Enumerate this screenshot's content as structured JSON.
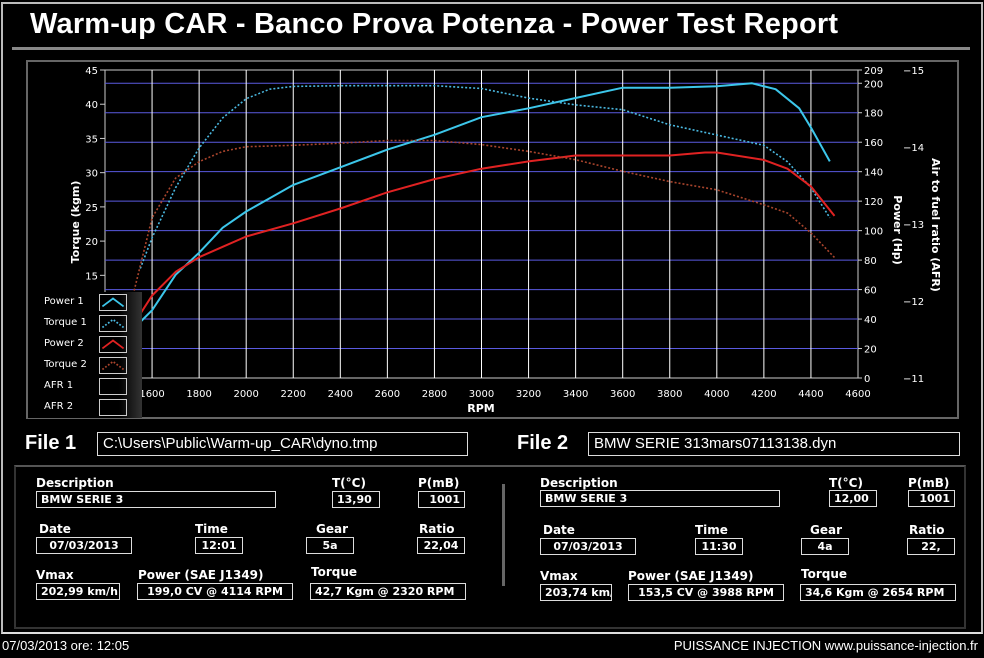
{
  "title": "Warm-up CAR  - Banco Prova Potenza -  Power Test Report",
  "colors": {
    "power1": "#3cc6ea",
    "torque1": "#4ab8e0",
    "power2": "#e02222",
    "torque2": "#a8442c",
    "grid_h": "#5a5ae0",
    "grid_v": "#ffffff"
  },
  "legend": [
    {
      "label": "Power 1",
      "icon": "solid-line"
    },
    {
      "label": "Torque 1",
      "icon": "dotted-line"
    },
    {
      "label": "Power 2",
      "icon": "solid-line"
    },
    {
      "label": "Torque 2",
      "icon": "dotted-line"
    },
    {
      "label": "AFR 1",
      "icon": "empty"
    },
    {
      "label": "AFR 2",
      "icon": "empty"
    }
  ],
  "chart_data": {
    "type": "line",
    "xlabel": "RPM",
    "ylabel_left": "Torque (kgm)",
    "ylabel_right": "Power (Hp)",
    "ylabel_right2": "Air to fuel ratio (AFR)",
    "xlim": [
      1400,
      4600
    ],
    "ylim_left": [
      0,
      45
    ],
    "ylim_right": [
      0,
      209
    ],
    "ylim_right2": [
      11,
      15
    ],
    "x_ticks": [
      1600,
      1800,
      2000,
      2200,
      2400,
      2600,
      2800,
      3000,
      3200,
      3400,
      3600,
      3800,
      4000,
      4200,
      4400,
      4600
    ],
    "y_left_ticks": [
      15,
      20,
      25,
      30,
      35,
      40,
      45
    ],
    "y_right_ticks": [
      0,
      20,
      40,
      60,
      80,
      100,
      120,
      140,
      160,
      180,
      200,
      209
    ],
    "y_right2_ticks": [
      11,
      12,
      13,
      14,
      15
    ],
    "grid": true,
    "legend_position": "bottom-left",
    "series": [
      {
        "name": "Power 1",
        "axis": "right",
        "style": "solid",
        "x": [
          1550,
          1600,
          1700,
          1800,
          1900,
          2000,
          2100,
          2200,
          2400,
          2600,
          2800,
          3000,
          3200,
          3400,
          3600,
          3700,
          3800,
          4000,
          4150,
          4250,
          4350,
          4400,
          4480
        ],
        "y": [
          38,
          46,
          70,
          85,
          102,
          113,
          122,
          131,
          143,
          155,
          165,
          177,
          183,
          190,
          197,
          197,
          197,
          198,
          200,
          196,
          183,
          170,
          147
        ]
      },
      {
        "name": "Torque 1",
        "axis": "left",
        "style": "dotted",
        "x": [
          1550,
          1600,
          1700,
          1800,
          1900,
          2000,
          2100,
          2200,
          2400,
          2600,
          2800,
          3000,
          3100,
          3200,
          3400,
          3600,
          3800,
          4000,
          4200,
          4300,
          4400,
          4480
        ],
        "y": [
          16,
          20.5,
          27.8,
          33.6,
          38,
          40.8,
          42.2,
          42.6,
          42.7,
          42.7,
          42.7,
          42.3,
          41.6,
          40.9,
          39.9,
          39.2,
          37,
          35.5,
          34,
          31.6,
          27.8,
          23.4
        ]
      },
      {
        "name": "Power 2",
        "axis": "right",
        "style": "solid",
        "x": [
          1540,
          1600,
          1700,
          1800,
          1900,
          2000,
          2200,
          2400,
          2600,
          2800,
          3000,
          3200,
          3400,
          3600,
          3800,
          3950,
          4000,
          4200,
          4300,
          4400,
          4500
        ],
        "y": [
          41,
          56,
          72,
          82,
          89,
          96,
          105,
          115,
          126,
          135,
          142,
          147,
          151,
          151,
          151,
          153,
          153,
          148,
          142,
          130,
          110
        ]
      },
      {
        "name": "Torque 2",
        "axis": "left",
        "style": "dotted",
        "x": [
          1520,
          1600,
          1700,
          1800,
          1900,
          2000,
          2200,
          2400,
          2600,
          2800,
          3000,
          3200,
          3400,
          3600,
          3800,
          4000,
          4200,
          4300,
          4400,
          4500
        ],
        "y": [
          12.2,
          23.4,
          29.2,
          31.6,
          33.1,
          33.8,
          34,
          34.3,
          34.7,
          34.7,
          34.1,
          33.1,
          31.9,
          30.2,
          28.7,
          27.5,
          25.3,
          24.1,
          21.2,
          17.6
        ]
      }
    ]
  },
  "files": {
    "file1_label": "File 1",
    "file1_value": "C:\\Users\\Public\\Warm-up_CAR\\dyno.tmp",
    "file2_label": "File 2",
    "file2_value": "BMW SERIE 313mars07113138.dyn"
  },
  "labels": {
    "description": "Description",
    "temp": "T(°C)",
    "pressure": "P(mB)",
    "date": "Date",
    "time": "Time",
    "gear": "Gear",
    "ratio": "Ratio",
    "vmax": "Vmax",
    "power": "Power (SAE J1349)",
    "torque": "Torque"
  },
  "run1": {
    "description": "BMW SERIE 3",
    "temp": "13,90",
    "pressure": "1001",
    "date": "07/03/2013",
    "time": "12:01",
    "gear": "5a",
    "ratio": "22,04",
    "vmax": "202,99 km/h",
    "power": "199,0 CV  @ 4114  RPM",
    "torque": "42,7 Kgm  @ 2320  RPM"
  },
  "run2": {
    "description": "BMW SERIE 3",
    "temp": "12,00",
    "pressure": "1001",
    "date": "07/03/2013",
    "time": "11:30",
    "gear": "4a",
    "ratio": "22,",
    "vmax": "203,74 km/",
    "power": "153,5 CV  @ 3988  RPM",
    "torque": "34,6 Kgm  @ 2654  RPM"
  },
  "footer": {
    "left": "07/03/2013  ore: 12:05",
    "right": "PUISSANCE INJECTION www.puissance-injection.fr"
  }
}
